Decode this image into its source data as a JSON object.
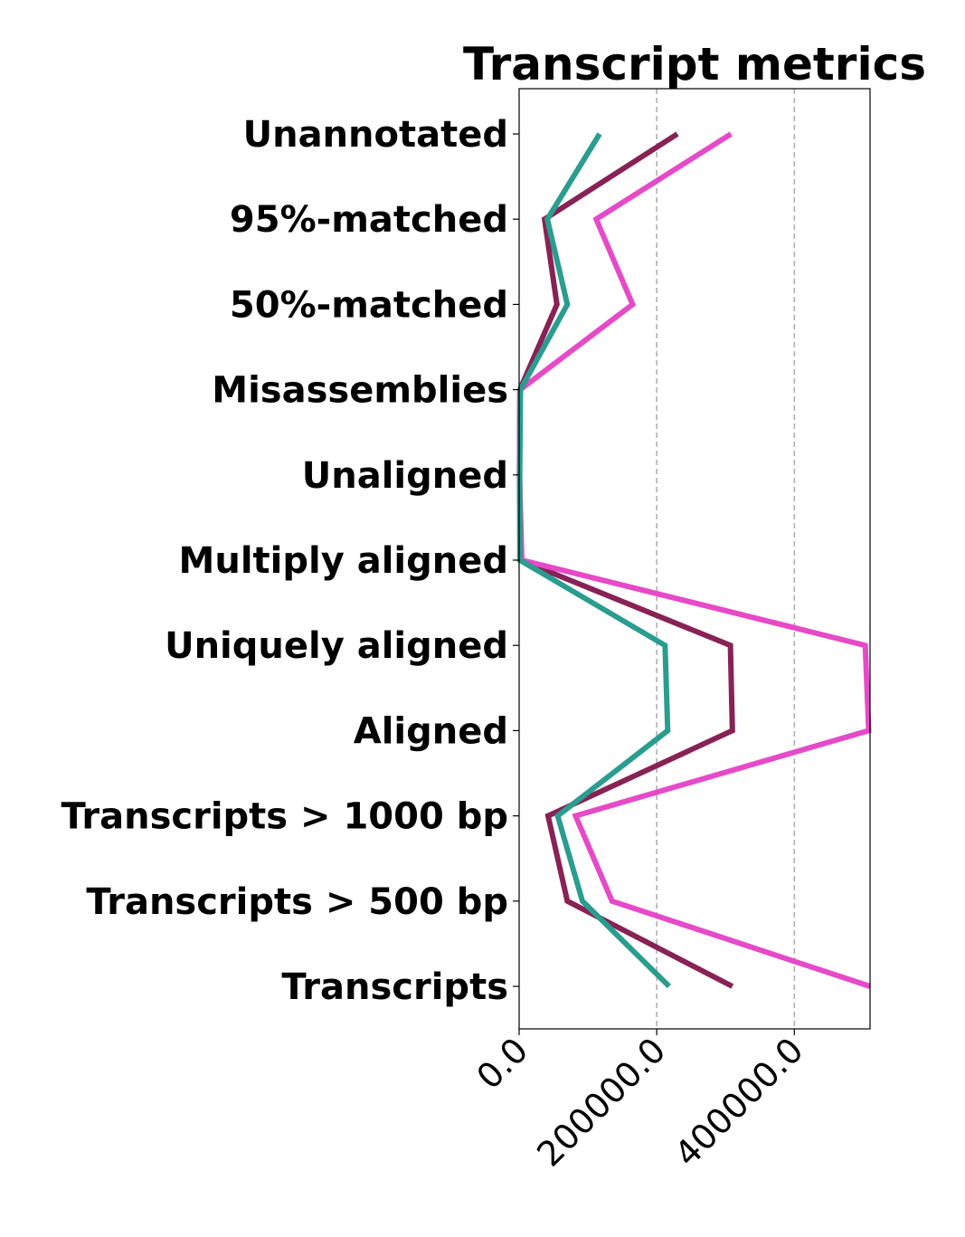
{
  "chart_data": {
    "type": "line",
    "title": "Transcript metrics",
    "orientation": "horizontal",
    "categories": [
      "Unannotated",
      "95%-matched",
      "50%-matched",
      "Misassemblies",
      "Unaligned",
      "Multiply aligned",
      "Uniquely aligned",
      "Aligned",
      "Transcripts > 1000 bp",
      "Transcripts > 500 bp",
      "Transcripts"
    ],
    "xlim": [
      0,
      510000
    ],
    "xticks": [
      0,
      200000,
      400000
    ],
    "xtick_labels": [
      "0.0",
      "200000.0",
      "400000.0"
    ],
    "grid": "vertical dashed",
    "series": [
      {
        "color": "#882255",
        "values": [
          230000,
          37000,
          55000,
          1000,
          500,
          2000,
          307000,
          310000,
          42000,
          70000,
          310000
        ]
      },
      {
        "color": "#E64AC8",
        "values": [
          308000,
          112000,
          165000,
          1500,
          500,
          4000,
          503000,
          508000,
          82000,
          135000,
          510000
        ]
      },
      {
        "color": "#2A9D8F",
        "values": [
          117000,
          41000,
          70000,
          2000,
          800,
          1000,
          212000,
          216000,
          56000,
          92000,
          218000
        ]
      }
    ]
  }
}
